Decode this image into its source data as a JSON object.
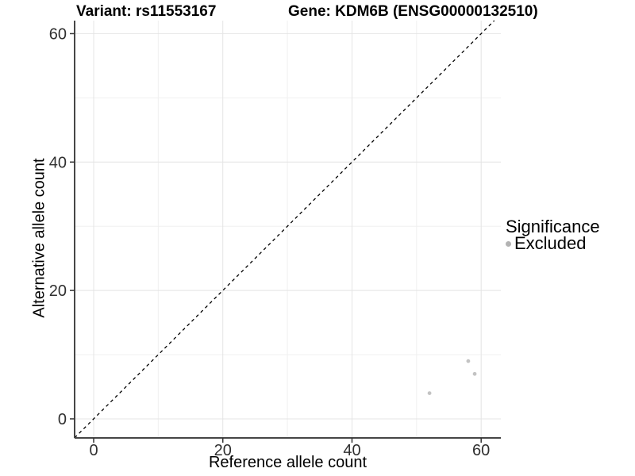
{
  "chart_data": {
    "type": "scatter",
    "title_left": "Variant: rs11553167",
    "title_right": "Gene: KDM6B (ENSG00000132510)",
    "xlabel": "Reference allele count",
    "ylabel": "Alternative allele count",
    "xlim": [
      -2.95,
      63.05
    ],
    "ylim": [
      -2.97,
      62.03
    ],
    "x_ticks": [
      0,
      20,
      40,
      60
    ],
    "y_ticks": [
      0,
      20,
      40,
      60
    ],
    "x_minor_ticks": [
      10,
      30,
      50
    ],
    "y_minor_ticks": [
      10,
      30,
      50
    ],
    "grid": "major+minor",
    "identity_line": {
      "slope": 1,
      "intercept": 0,
      "style": "dashed",
      "color": "#000000"
    },
    "series": [
      {
        "name": "Excluded",
        "color": "#c3c3c3",
        "points": [
          [
            58,
            9
          ],
          [
            59,
            7
          ],
          [
            52,
            4
          ]
        ]
      }
    ],
    "legend": {
      "title": "Significance",
      "position": "right",
      "items": [
        {
          "label": "Excluded",
          "color": "#b3b3b3"
        }
      ]
    },
    "style": {
      "grid_major": "#e4e4e4",
      "grid_minor": "#f0f0f0",
      "axis_line": "#464646",
      "tick_color": "#333333",
      "tick_label_color": "#303030",
      "background": "#ffffff"
    }
  }
}
